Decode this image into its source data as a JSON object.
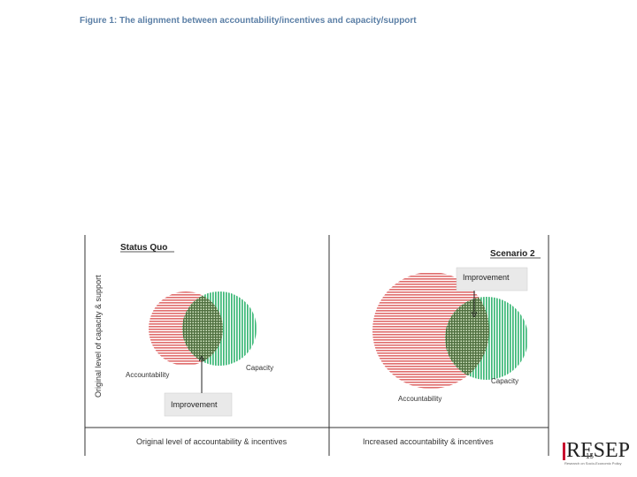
{
  "figure": {
    "title": "Figure 1: The alignment between accountability/incentives and capacity/support"
  },
  "axes": {
    "y_label": "Original level of capacity & support",
    "x_label_left": "Original level of accountability & incentives",
    "x_label_right": "Increased accountability & incentives"
  },
  "panels": {
    "status_quo": {
      "title": "Status Quo",
      "accountability_label": "Accountability",
      "capacity_label": "Capacity",
      "improvement_label": "Improvement"
    },
    "scenario_2": {
      "title": "Scenario 2",
      "accountability_label": "Accountability",
      "capacity_label": "Capacity",
      "improvement_label": "Improvement"
    }
  },
  "colors": {
    "accountability": "#e06c6c",
    "capacity": "#3cb877",
    "overlap": "#4f6f3f",
    "callout_bg": "#e9e9e9"
  },
  "logo": {
    "text": "RESEP",
    "subtitle": "Research on Socio-Economic Policy"
  },
  "page_number": "15"
}
